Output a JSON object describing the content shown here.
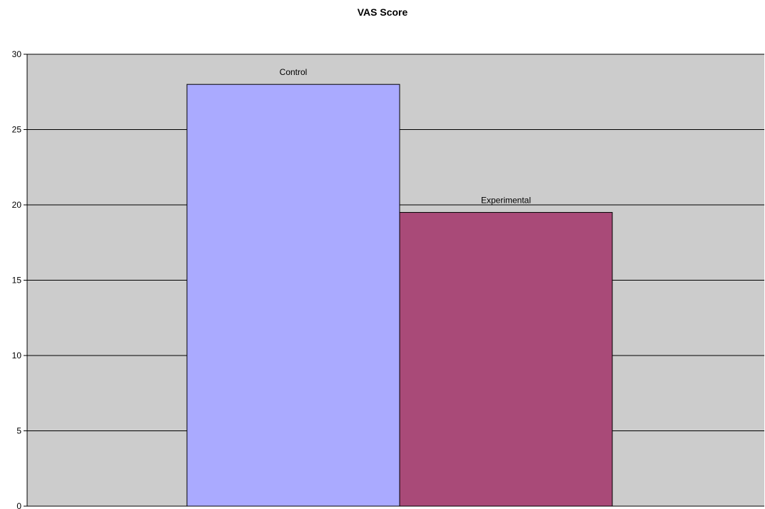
{
  "chart_data": {
    "type": "bar",
    "title": "VAS Score",
    "xlabel": "",
    "ylabel": "",
    "ylim": [
      0,
      30
    ],
    "yticks": [
      0,
      5,
      10,
      15,
      20,
      25,
      30
    ],
    "grid": true,
    "legend": "none",
    "series": [
      {
        "name": "Control",
        "values": [
          28
        ],
        "color": "#aaaaff"
      },
      {
        "name": "Experimental",
        "values": [
          19.5
        ],
        "color": "#a94a78"
      }
    ],
    "plot_background": "#cccccc"
  }
}
